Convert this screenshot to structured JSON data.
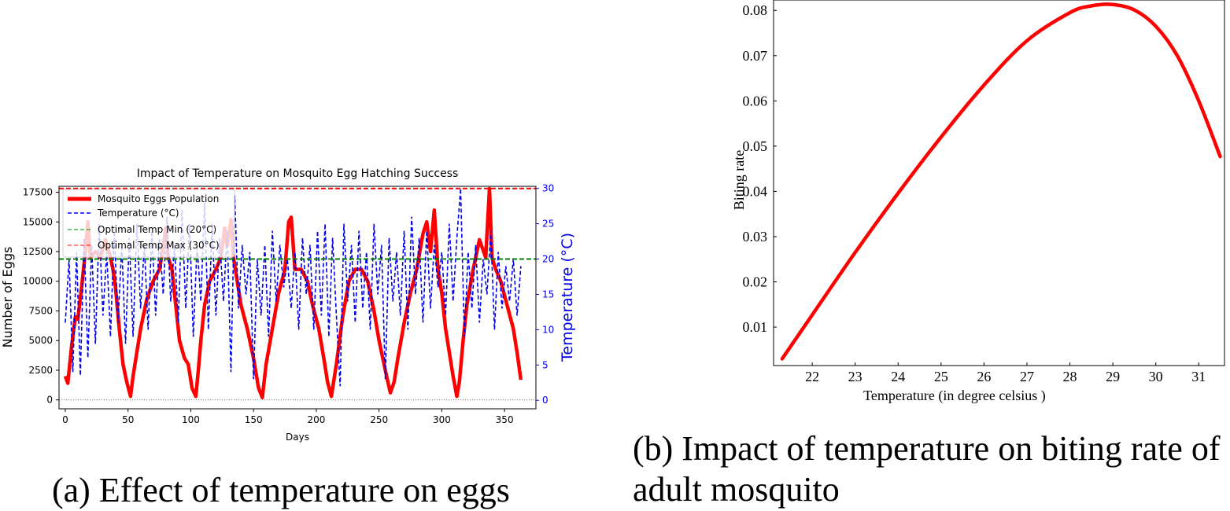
{
  "captions": {
    "a": "(a) Effect of temperature on eggs",
    "b": "(b) Impact of temperature on biting rate of adult mosquito"
  },
  "colors": {
    "eggs": "#ff0000",
    "temp": "#0000ee",
    "opt_min": "#008000",
    "opt_max": "#ff0000",
    "axis_right": "#0000ee"
  },
  "chart_data": [
    {
      "type": "line",
      "title": "Impact of Temperature on Mosquito Egg Hatching Success",
      "xlabel": "Days",
      "ylabel": "Number of Eggs",
      "y2label": "Temperature (°C)",
      "xlim": [
        -5,
        375
      ],
      "ylim": [
        -750,
        18000
      ],
      "y2lim": [
        -1.2,
        30.3
      ],
      "xticks": [
        "0",
        "50",
        "100",
        "150",
        "200",
        "250",
        "300",
        "350"
      ],
      "yticks": [
        "0",
        "2500",
        "5000",
        "7500",
        "10000",
        "12500",
        "15000",
        "17500"
      ],
      "y2ticks": [
        "0",
        "5",
        "10",
        "15",
        "20",
        "25",
        "30"
      ],
      "legend": [
        "Mosquito Eggs Population",
        "Temperature (°C)",
        "Optimal Temp Min (20°C)",
        "Optimal Temp Max (30°C)"
      ],
      "legend_position": "top-left",
      "series": [
        {
          "name": "Mosquito Eggs Population",
          "x": [
            0,
            2,
            5,
            8,
            10,
            13,
            16,
            18,
            20,
            24,
            28,
            32,
            36,
            38,
            40,
            43,
            46,
            49,
            52,
            54,
            57,
            60,
            65,
            70,
            75,
            78,
            80,
            82,
            85,
            88,
            91,
            95,
            98,
            101,
            104,
            106,
            108,
            111,
            115,
            120,
            124,
            127,
            129,
            132,
            134,
            137,
            140,
            145,
            150,
            154,
            157,
            160,
            165,
            170,
            175,
            178,
            180,
            183,
            188,
            193,
            197,
            202,
            206,
            209,
            212,
            216,
            221,
            226,
            231,
            236,
            241,
            246,
            250,
            255,
            259,
            262,
            265,
            270,
            275,
            280,
            285,
            288,
            291,
            294,
            297,
            300,
            303,
            306,
            309,
            312,
            314,
            317,
            320,
            325,
            330,
            335,
            338,
            340,
            343,
            347,
            352,
            357,
            360,
            363
          ],
          "values": [
            2000,
            1400,
            4500,
            7000,
            6800,
            9500,
            12500,
            15000,
            12000,
            12500,
            12000,
            13500,
            12000,
            11000,
            9500,
            6000,
            3000,
            1500,
            300,
            2000,
            4000,
            6000,
            8500,
            10000,
            11000,
            12800,
            14500,
            12000,
            11000,
            8000,
            5000,
            3500,
            3000,
            1000,
            300,
            2500,
            5000,
            8000,
            10000,
            11000,
            12000,
            14500,
            13000,
            15200,
            12000,
            10000,
            8000,
            6000,
            3500,
            1000,
            200,
            3000,
            6000,
            9000,
            11000,
            15000,
            15400,
            11000,
            11000,
            10000,
            8000,
            6000,
            3500,
            1500,
            300,
            3000,
            7000,
            10000,
            11000,
            11000,
            10000,
            7500,
            5000,
            2500,
            600,
            1500,
            3500,
            6500,
            9000,
            11000,
            14000,
            15000,
            12500,
            16000,
            11000,
            9000,
            6000,
            4000,
            2000,
            300,
            1500,
            5000,
            8000,
            11000,
            13500,
            12000,
            17800,
            12000,
            11000,
            10000,
            8000,
            6000,
            4000,
            1700
          ]
        },
        {
          "name": "Temperature (°C)",
          "x": [
            0,
            3,
            6,
            9,
            12,
            15,
            18,
            21,
            24,
            27,
            30,
            33,
            36,
            39,
            42,
            45,
            48,
            51,
            54,
            57,
            60,
            63,
            66,
            69,
            72,
            75,
            78,
            81,
            84,
            87,
            90,
            93,
            96,
            99,
            102,
            105,
            108,
            111,
            114,
            117,
            120,
            123,
            126,
            129,
            132,
            135,
            138,
            141,
            144,
            147,
            150,
            153,
            156,
            159,
            162,
            165,
            168,
            171,
            174,
            177,
            180,
            183,
            186,
            189,
            192,
            195,
            198,
            201,
            204,
            207,
            210,
            213,
            216,
            219,
            222,
            225,
            228,
            231,
            234,
            237,
            240,
            243,
            246,
            249,
            252,
            255,
            258,
            261,
            264,
            267,
            270,
            273,
            276,
            279,
            282,
            285,
            288,
            291,
            294,
            297,
            300,
            303,
            306,
            309,
            312,
            315,
            318,
            321,
            324,
            327,
            330,
            333,
            336,
            339,
            342,
            345,
            348,
            351,
            354,
            357,
            360,
            363
          ],
          "values": [
            11,
            20,
            4,
            21,
            3.5,
            23,
            6,
            22,
            8,
            25,
            12,
            21,
            9,
            24,
            11,
            22,
            8,
            23,
            9,
            25,
            13,
            22,
            10,
            24,
            12,
            23,
            15,
            26,
            14,
            22,
            11,
            27,
            13,
            25,
            9,
            22,
            14,
            28,
            10,
            25,
            12,
            23,
            14,
            24,
            4,
            29,
            13,
            22,
            15,
            21,
            3,
            20,
            12,
            22,
            9,
            24,
            14,
            22,
            16,
            20,
            13,
            21,
            10,
            23,
            15,
            22,
            10,
            24,
            12,
            25,
            9,
            23,
            12,
            2,
            25,
            14,
            22,
            11,
            24,
            13,
            21,
            10,
            25,
            15,
            22,
            3,
            23,
            14,
            21,
            12,
            24,
            10,
            26,
            15,
            23,
            11,
            24,
            13,
            22,
            16,
            21,
            12,
            25,
            14,
            23,
            30,
            9,
            21,
            13,
            22,
            11,
            20,
            15,
            24,
            10,
            21,
            13,
            19,
            14,
            20,
            12,
            19
          ]
        }
      ],
      "hlines": [
        {
          "name": "Optimal Temp Min (20°C)",
          "temperature": 20
        },
        {
          "name": "Optimal Temp Max (30°C)",
          "temperature": 30
        }
      ]
    },
    {
      "type": "line",
      "title": "",
      "xlabel": "Temperature (in degree celsius )",
      "ylabel": "Biting rate",
      "xlim": [
        21.1,
        31.6
      ],
      "ylim": [
        0.0015,
        0.0823
      ],
      "xticks": [
        "22",
        "23",
        "24",
        "25",
        "26",
        "27",
        "28",
        "29",
        "30",
        "31"
      ],
      "yticks": [
        "0.01",
        "0.02",
        "0.03",
        "0.04",
        "0.05",
        "0.06",
        "0.07",
        "0.08"
      ],
      "series": [
        {
          "name": "Biting rate",
          "x": [
            21.3,
            22.0,
            23.0,
            24.0,
            25.0,
            26.0,
            27.0,
            28.0,
            28.5,
            29.0,
            29.5,
            30.0,
            30.5,
            31.0,
            31.5
          ],
          "values": [
            0.003,
            0.0127,
            0.0265,
            0.0396,
            0.052,
            0.0635,
            0.0733,
            0.0795,
            0.081,
            0.0813,
            0.0801,
            0.0765,
            0.07,
            0.06,
            0.0477
          ]
        }
      ]
    }
  ]
}
